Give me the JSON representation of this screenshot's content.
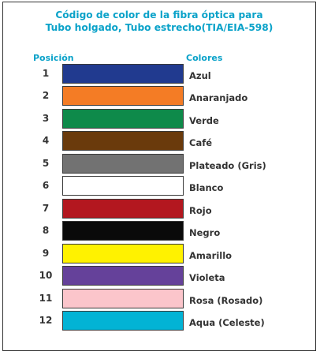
{
  "title": {
    "line1": "Código de color de la fibra óptica para",
    "line2": "Tubo holgado, Tubo estrecho(TIA/EIA-598)"
  },
  "headers": {
    "position": "Posición",
    "colors": "Colores"
  },
  "rows": [
    {
      "position": "1",
      "name": "Azul",
      "color": "#213a8f"
    },
    {
      "position": "2",
      "name": "Anaranjado",
      "color": "#f47c25"
    },
    {
      "position": "3",
      "name": "Verde",
      "color": "#0e8a4a"
    },
    {
      "position": "4",
      "name": "Café",
      "color": "#6a3a0c"
    },
    {
      "position": "5",
      "name": "Plateado (Gris)",
      "color": "#727272"
    },
    {
      "position": "6",
      "name": "Blanco",
      "color": "#ffffff"
    },
    {
      "position": "7",
      "name": "Rojo",
      "color": "#b3171f"
    },
    {
      "position": "8",
      "name": "Negro",
      "color": "#0a0a0a"
    },
    {
      "position": "9",
      "name": "Amarillo",
      "color": "#fff200"
    },
    {
      "position": "10",
      "name": "Violeta",
      "color": "#65419a"
    },
    {
      "position": "11",
      "name": "Rosa (Rosado)",
      "color": "#fbc5cb"
    },
    {
      "position": "12",
      "name": "Aqua (Celeste)",
      "color": "#02b3d5"
    }
  ]
}
